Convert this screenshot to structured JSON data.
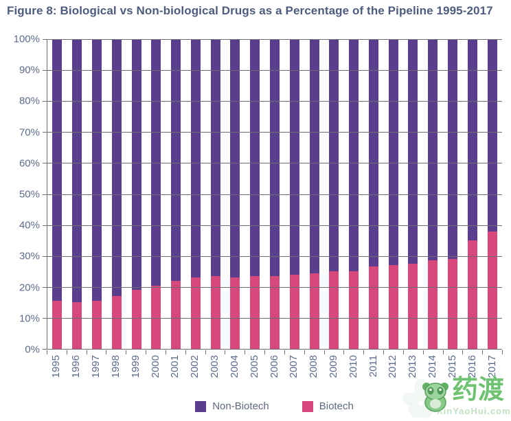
{
  "title": "Figure 8: Biological vs Non-biological Drugs as a Percentage of the Pipeline 1995-2017",
  "y_axis": {
    "ticks": [
      "100%",
      "90%",
      "80%",
      "70%",
      "60%",
      "50%",
      "40%",
      "30%",
      "20%",
      "10%",
      "0%"
    ]
  },
  "legend": {
    "items": [
      {
        "label": "Non-Biotech",
        "color": "#5b3d8d"
      },
      {
        "label": "Biotech",
        "color": "#d7487d"
      }
    ]
  },
  "watermark": {
    "brand": "药渡",
    "site": "XinYaoHui.com",
    "mascot_icon": "green-mascot-icon",
    "color": "#6fc271"
  },
  "colors": {
    "non_biotech": "#5b3d8d",
    "biotech": "#d7487d",
    "title_text": "#4d5b7d",
    "axis_text": "#5c6b8c",
    "gridline": "#6b6b75",
    "background": "#ffffff"
  },
  "chart_data": {
    "type": "bar",
    "stacked": true,
    "title": "Figure 8: Biological vs Non-biological Drugs as a Percentage of the Pipeline 1995-2017",
    "categories": [
      1995,
      1996,
      1997,
      1998,
      1999,
      2000,
      2001,
      2002,
      2003,
      2004,
      2005,
      2006,
      2007,
      2008,
      2009,
      2010,
      2011,
      2012,
      2013,
      2014,
      2015,
      2016,
      2017
    ],
    "series": [
      {
        "name": "Non-Biotech",
        "color": "#5b3d8d",
        "values": [
          84.5,
          85,
          84.5,
          83,
          81,
          79.5,
          78,
          77,
          76.5,
          77,
          76.5,
          76.5,
          76,
          75.5,
          75,
          75,
          73.5,
          73,
          72.5,
          71.5,
          71,
          65,
          62
        ]
      },
      {
        "name": "Biotech",
        "color": "#d7487d",
        "values": [
          15.5,
          15,
          15.5,
          17,
          19,
          20.5,
          22,
          23,
          23.5,
          23,
          23.5,
          23.5,
          24,
          24.5,
          25,
          25,
          26.5,
          27,
          27.5,
          28.5,
          29,
          35,
          38
        ]
      }
    ],
    "xlabel": "",
    "ylabel": "",
    "ylim": [
      0,
      100
    ],
    "y_tick_step": 10,
    "y_tick_format": "percent",
    "grid": "horizontal",
    "legend_position": "bottom"
  }
}
